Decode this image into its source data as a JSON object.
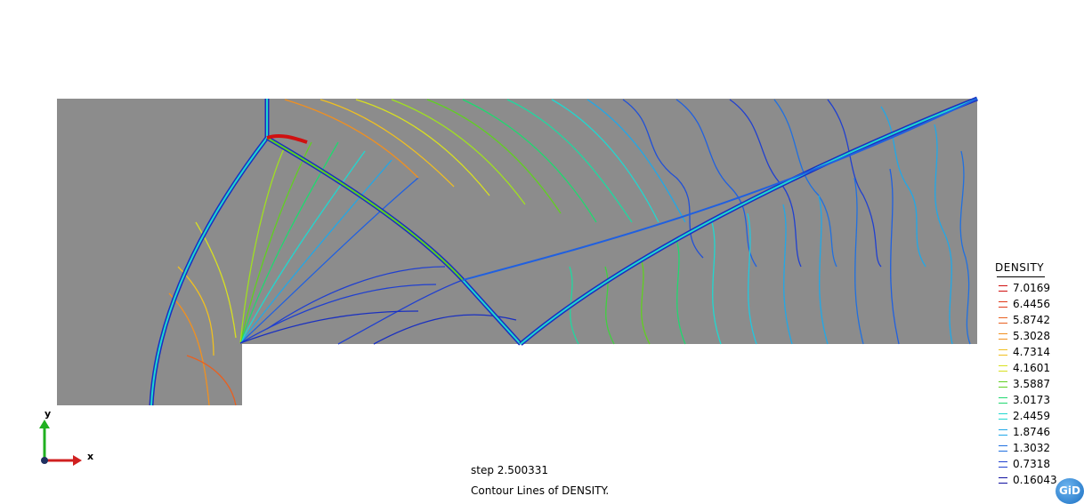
{
  "legend": {
    "title": "DENSITY",
    "items": [
      {
        "value": "7.0169",
        "color": "#d01010"
      },
      {
        "value": "6.4456",
        "color": "#e03818"
      },
      {
        "value": "5.8742",
        "color": "#e86020"
      },
      {
        "value": "5.3028",
        "color": "#f09020"
      },
      {
        "value": "4.7314",
        "color": "#f0c020"
      },
      {
        "value": "4.1601",
        "color": "#d8e020"
      },
      {
        "value": "3.5887",
        "color": "#60d020"
      },
      {
        "value": "3.0173",
        "color": "#20d870"
      },
      {
        "value": "2.4459",
        "color": "#20d8d0"
      },
      {
        "value": "1.8746",
        "color": "#20a8e8"
      },
      {
        "value": "1.3032",
        "color": "#2070e0"
      },
      {
        "value": "0.7318",
        "color": "#2040d0"
      },
      {
        "value": "0.16043",
        "color": "#1010a0"
      }
    ]
  },
  "caption": {
    "step": "step 2.500331",
    "title": "Contour Lines of DENSITY."
  },
  "axes": {
    "x_label": "x",
    "y_label": "y"
  },
  "logo": {
    "text": "GiD"
  },
  "colors": {
    "domain_fill": "#8c8c8c",
    "background": "#ffffff"
  }
}
